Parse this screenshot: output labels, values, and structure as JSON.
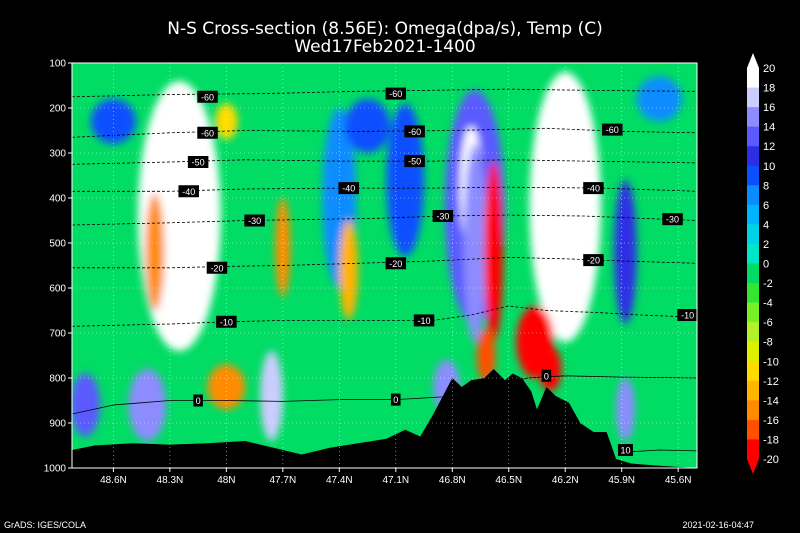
{
  "chart_data": {
    "type": "heatmap",
    "title": "N-S Cross-section (8.56E): Omega(dpa/s), Temp (C)",
    "subtitle": "Wed17Feb2021-1400",
    "y_axis": {
      "range": [
        1000,
        100
      ],
      "ticks": [
        100,
        200,
        300,
        400,
        500,
        600,
        700,
        800,
        900,
        1000
      ]
    },
    "x_axis": {
      "range": [
        48.82,
        45.5
      ],
      "ticks": [
        "48.6N",
        "48.3N",
        "48N",
        "47.7N",
        "47.4N",
        "47.1N",
        "46.8N",
        "46.5N",
        "46.2N",
        "45.9N",
        "45.6N"
      ],
      "tick_values": [
        48.6,
        48.3,
        48.0,
        47.7,
        47.4,
        47.1,
        46.8,
        46.5,
        46.2,
        45.9,
        45.6
      ]
    },
    "colorbar": {
      "levels": [
        "20",
        "18",
        "16",
        "14",
        "12",
        "10",
        "8",
        "6",
        "4",
        "2",
        "0",
        "-2",
        "-4",
        "-6",
        "-8",
        "-10",
        "-12",
        "-14",
        "-16",
        "-18",
        "-20"
      ],
      "colors": [
        "#ffffff",
        "#ccccff",
        "#8c8cff",
        "#5a5aff",
        "#2d2de6",
        "#0a50ff",
        "#0a8cff",
        "#00b4ff",
        "#00d2e6",
        "#00e6c8",
        "#00dc64",
        "#32e632",
        "#78f028",
        "#b4f028",
        "#dcf000",
        "#ffdc00",
        "#ffb400",
        "#ff8c00",
        "#ff5000",
        "#ff0000"
      ]
    },
    "temperature_contours": [
      {
        "label": "-60",
        "points": [
          [
            48.82,
            175
          ],
          [
            48.3,
            170
          ],
          [
            47.8,
            168
          ],
          [
            47.3,
            163
          ],
          [
            46.8,
            160
          ],
          [
            46.5,
            158
          ],
          [
            46.2,
            160
          ],
          [
            45.8,
            162
          ],
          [
            45.5,
            163
          ]
        ]
      },
      {
        "label": "-60",
        "points": [
          [
            48.82,
            265
          ],
          [
            48.3,
            255
          ],
          [
            47.9,
            250
          ],
          [
            47.3,
            252
          ],
          [
            46.8,
            250
          ],
          [
            46.3,
            245
          ],
          [
            45.9,
            252
          ],
          [
            45.5,
            255
          ]
        ]
      },
      {
        "label": "-50",
        "points": [
          [
            48.82,
            325
          ],
          [
            48.3,
            320
          ],
          [
            47.9,
            315
          ],
          [
            47.4,
            318
          ],
          [
            46.9,
            318
          ],
          [
            46.5,
            315
          ],
          [
            46.1,
            318
          ],
          [
            45.5,
            322
          ]
        ]
      },
      {
        "label": "-40",
        "points": [
          [
            48.82,
            385
          ],
          [
            48.3,
            385
          ],
          [
            47.9,
            380
          ],
          [
            47.4,
            378
          ],
          [
            46.9,
            378
          ],
          [
            46.5,
            376
          ],
          [
            46.0,
            378
          ],
          [
            45.5,
            385
          ]
        ]
      },
      {
        "label": "-30",
        "points": [
          [
            48.82,
            460
          ],
          [
            48.3,
            455
          ],
          [
            47.9,
            450
          ],
          [
            47.6,
            448
          ],
          [
            47.2,
            445
          ],
          [
            46.85,
            440
          ],
          [
            46.5,
            438
          ],
          [
            46.1,
            440
          ],
          [
            45.8,
            445
          ],
          [
            45.5,
            450
          ]
        ]
      },
      {
        "label": "-20",
        "points": [
          [
            48.82,
            555
          ],
          [
            48.3,
            555
          ],
          [
            48.0,
            552
          ],
          [
            47.7,
            550
          ],
          [
            47.3,
            545
          ],
          [
            46.9,
            540
          ],
          [
            46.5,
            532
          ],
          [
            46.2,
            535
          ],
          [
            45.9,
            540
          ],
          [
            45.5,
            545
          ]
        ]
      },
      {
        "label": "-10",
        "points": [
          [
            48.82,
            685
          ],
          [
            48.3,
            680
          ],
          [
            48.0,
            675
          ],
          [
            47.7,
            672
          ],
          [
            47.3,
            672
          ],
          [
            46.9,
            672
          ],
          [
            46.7,
            660
          ],
          [
            46.5,
            640
          ],
          [
            46.3,
            650
          ],
          [
            46.0,
            655
          ],
          [
            45.8,
            660
          ],
          [
            45.5,
            665
          ]
        ]
      },
      {
        "label": "0",
        "points": [
          [
            48.82,
            880
          ],
          [
            48.6,
            860
          ],
          [
            48.3,
            850
          ],
          [
            48.0,
            850
          ],
          [
            47.7,
            852
          ],
          [
            47.4,
            848
          ],
          [
            47.1,
            848
          ],
          [
            46.85,
            842
          ],
          [
            46.7,
            830
          ],
          [
            46.55,
            815
          ],
          [
            46.4,
            800
          ],
          [
            46.2,
            795
          ],
          [
            45.9,
            798
          ],
          [
            45.5,
            800
          ]
        ]
      },
      {
        "label": "10",
        "points": [
          [
            45.9,
            965
          ],
          [
            45.7,
            960
          ],
          [
            45.5,
            962
          ]
        ]
      }
    ],
    "contour_label_positions": [
      [
        48.1,
        175
      ],
      [
        47.1,
        168
      ],
      [
        48.1,
        255
      ],
      [
        47.0,
        252
      ],
      [
        45.95,
        248
      ],
      [
        48.15,
        320
      ],
      [
        47.0,
        318
      ],
      [
        48.2,
        385
      ],
      [
        47.35,
        378
      ],
      [
        46.05,
        378
      ],
      [
        47.85,
        450
      ],
      [
        46.85,
        440
      ],
      [
        45.63,
        447
      ],
      [
        48.05,
        555
      ],
      [
        47.1,
        545
      ],
      [
        46.05,
        538
      ],
      [
        48.0,
        675
      ],
      [
        46.95,
        672
      ],
      [
        45.55,
        660
      ],
      [
        48.15,
        850
      ],
      [
        47.1,
        848
      ],
      [
        46.3,
        795
      ],
      [
        45.88,
        960
      ]
    ],
    "omega_features": [
      {
        "center": [
          48.25,
          440
        ],
        "rx": 0.22,
        "ry": 300,
        "value": 20
      },
      {
        "center": [
          48.25,
          440
        ],
        "rx": 0.12,
        "ry": 240,
        "value": 22
      },
      {
        "center": [
          46.2,
          420
        ],
        "rx": 0.19,
        "ry": 300,
        "value": 20
      },
      {
        "center": [
          46.24,
          440
        ],
        "rx": 0.12,
        "ry": 200,
        "value": 22
      },
      {
        "center": [
          46.68,
          420
        ],
        "rx": 0.16,
        "ry": 260,
        "value": 14
      },
      {
        "center": [
          46.7,
          380
        ],
        "rx": 0.06,
        "ry": 140,
        "value": 20
      },
      {
        "center": [
          46.68,
          500
        ],
        "rx": 0.06,
        "ry": 220,
        "value": 16
      },
      {
        "center": [
          48.6,
          230
        ],
        "rx": 0.12,
        "ry": 50,
        "value": 10
      },
      {
        "center": [
          47.4,
          400
        ],
        "rx": 0.09,
        "ry": 200,
        "value": 8
      },
      {
        "center": [
          47.05,
          360
        ],
        "rx": 0.1,
        "ry": 170,
        "value": 10
      },
      {
        "center": [
          47.25,
          240
        ],
        "rx": 0.12,
        "ry": 60,
        "value": 10
      },
      {
        "center": [
          45.88,
          520
        ],
        "rx": 0.06,
        "ry": 160,
        "value": 12
      },
      {
        "center": [
          45.7,
          180
        ],
        "rx": 0.12,
        "ry": 50,
        "value": 8
      },
      {
        "center": [
          48.75,
          860
        ],
        "rx": 0.08,
        "ry": 70,
        "value": 14
      },
      {
        "center": [
          48.42,
          860
        ],
        "rx": 0.1,
        "ry": 80,
        "value": 16
      },
      {
        "center": [
          47.76,
          840
        ],
        "rx": 0.06,
        "ry": 100,
        "value": 18
      },
      {
        "center": [
          46.83,
          820
        ],
        "rx": 0.07,
        "ry": 60,
        "value": 16
      },
      {
        "center": [
          45.88,
          870
        ],
        "rx": 0.05,
        "ry": 70,
        "value": 16
      },
      {
        "center": [
          48.38,
          520
        ],
        "rx": 0.05,
        "ry": 130,
        "value": -14
      },
      {
        "center": [
          47.7,
          510
        ],
        "rx": 0.04,
        "ry": 110,
        "value": -14
      },
      {
        "center": [
          47.35,
          560
        ],
        "rx": 0.05,
        "ry": 110,
        "value": -12
      },
      {
        "center": [
          48.0,
          820
        ],
        "rx": 0.1,
        "ry": 50,
        "value": -14
      },
      {
        "center": [
          48.0,
          230
        ],
        "rx": 0.06,
        "ry": 40,
        "value": -10
      },
      {
        "center": [
          46.58,
          520
        ],
        "rx": 0.05,
        "ry": 200,
        "value": -20
      },
      {
        "center": [
          46.36,
          720
        ],
        "rx": 0.1,
        "ry": 80,
        "value": -18
      },
      {
        "center": [
          46.28,
          780
        ],
        "rx": 0.06,
        "ry": 50,
        "value": -18
      },
      {
        "center": [
          46.62,
          750
        ],
        "rx": 0.05,
        "ry": 60,
        "value": -16
      }
    ],
    "topography_pressure": [
      [
        48.82,
        960
      ],
      [
        48.7,
        950
      ],
      [
        48.5,
        945
      ],
      [
        48.3,
        948
      ],
      [
        48.1,
        945
      ],
      [
        47.9,
        940
      ],
      [
        47.75,
        955
      ],
      [
        47.6,
        970
      ],
      [
        47.45,
        955
      ],
      [
        47.3,
        945
      ],
      [
        47.15,
        935
      ],
      [
        47.05,
        915
      ],
      [
        46.97,
        930
      ],
      [
        46.9,
        880
      ],
      [
        46.85,
        840
      ],
      [
        46.8,
        800
      ],
      [
        46.75,
        820
      ],
      [
        46.7,
        805
      ],
      [
        46.63,
        800
      ],
      [
        46.58,
        780
      ],
      [
        46.52,
        805
      ],
      [
        46.48,
        790
      ],
      [
        46.43,
        800
      ],
      [
        46.38,
        830
      ],
      [
        46.35,
        870
      ],
      [
        46.3,
        820
      ],
      [
        46.25,
        840
      ],
      [
        46.18,
        855
      ],
      [
        46.12,
        900
      ],
      [
        46.05,
        920
      ],
      [
        45.98,
        920
      ],
      [
        45.93,
        980
      ],
      [
        45.85,
        990
      ],
      [
        45.7,
        995
      ],
      [
        45.5,
        1000
      ]
    ]
  },
  "footer": {
    "left": "GrADS: IGES/COLA",
    "right": "2021-02-16-04:47"
  }
}
